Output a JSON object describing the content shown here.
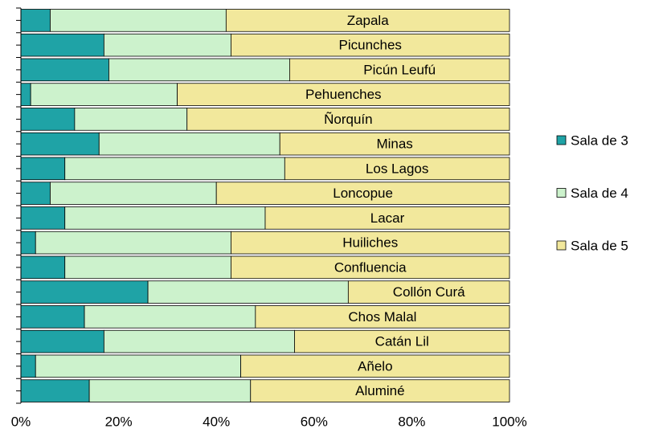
{
  "chart_data": {
    "type": "stacked_barh",
    "categories": [
      "Zapala",
      "Picunches",
      "Picún Leufú",
      "Pehuenches",
      "Ñorquín",
      "Minas",
      "Los Lagos",
      "Loncopue",
      "Lacar",
      "Huiliches",
      "Confluencia",
      "Collón Curá",
      "Chos Malal",
      "Catán Lil",
      "Añelo",
      "Aluminé"
    ],
    "series": [
      {
        "name": "Sala de 3",
        "color": "#1fa3a6",
        "values": [
          6,
          17,
          18,
          2,
          11,
          16,
          9,
          6,
          9,
          3,
          9,
          26,
          13,
          17,
          3,
          14
        ]
      },
      {
        "name": "Sala de 4",
        "color": "#ccf2cc",
        "values": [
          36,
          26,
          37,
          30,
          23,
          37,
          45,
          34,
          41,
          40,
          34,
          41,
          35,
          39,
          42,
          33
        ]
      },
      {
        "name": "Sala de 5",
        "color": "#f2e89c",
        "values": [
          58,
          57,
          45,
          68,
          66,
          47,
          46,
          60,
          50,
          57,
          57,
          33,
          52,
          44,
          55,
          53
        ]
      }
    ],
    "xlim": [
      0,
      100
    ],
    "xticks": [
      {
        "value": 0,
        "label": "0%"
      },
      {
        "value": 20,
        "label": "20%"
      },
      {
        "value": 40,
        "label": "40%"
      },
      {
        "value": 60,
        "label": "60%"
      },
      {
        "value": 80,
        "label": "80%"
      },
      {
        "value": 100,
        "label": "100%"
      }
    ],
    "legend": "right"
  }
}
